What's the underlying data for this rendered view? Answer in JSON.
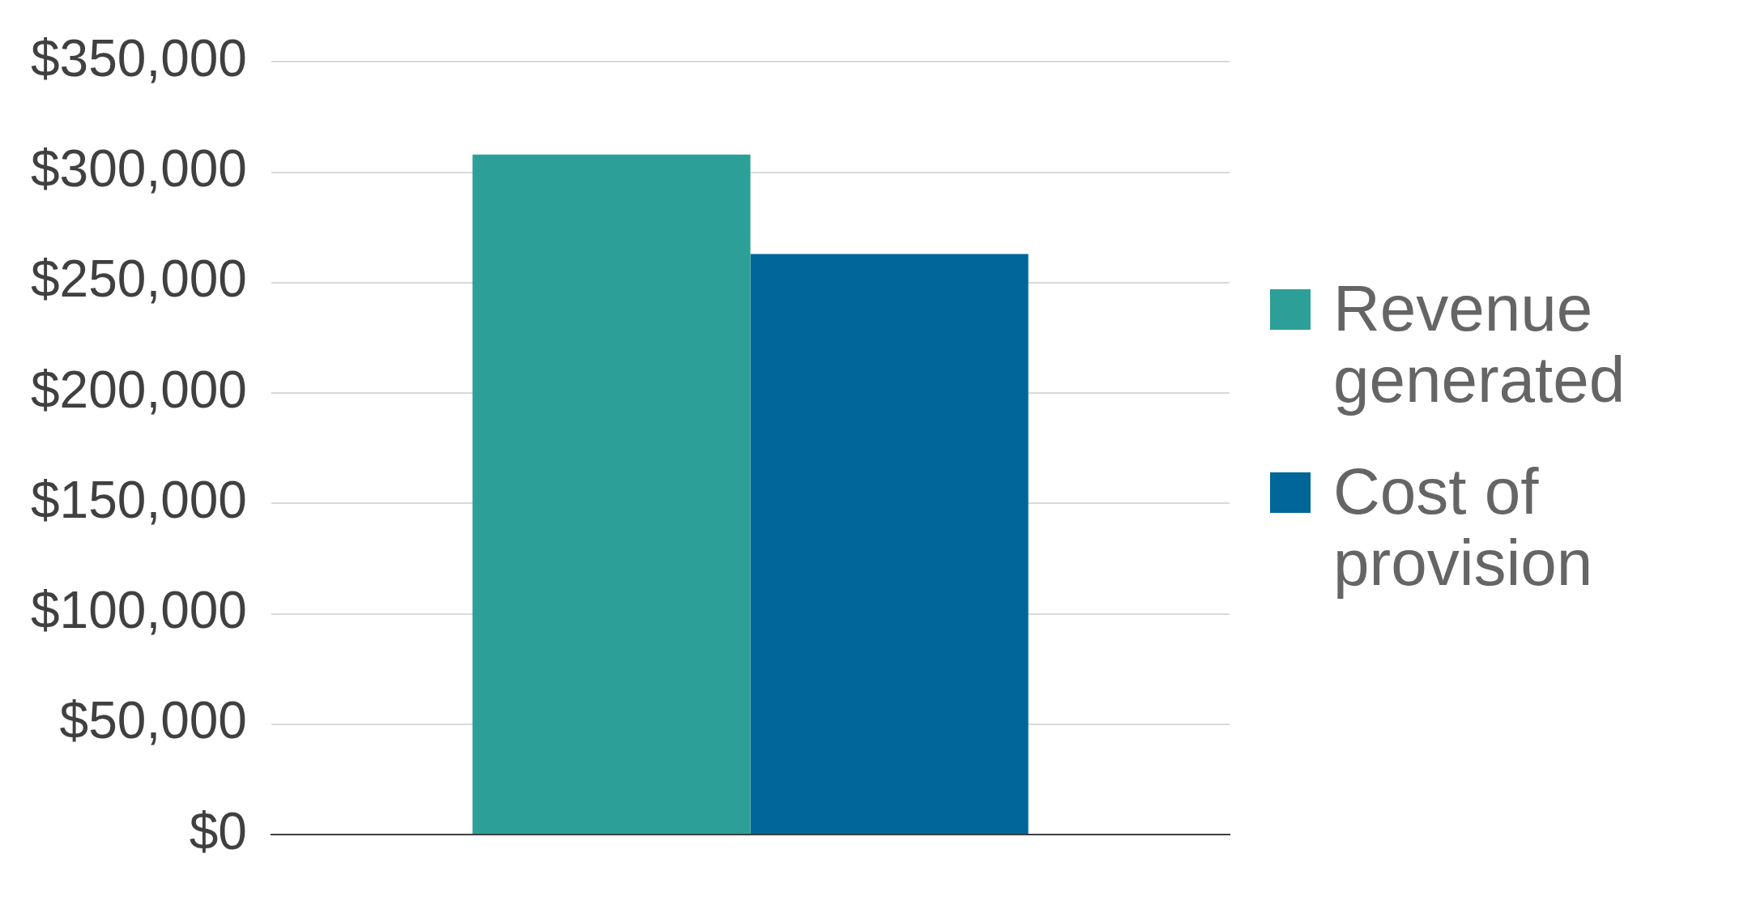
{
  "chart_data": {
    "type": "bar",
    "categories": [
      null
    ],
    "series": [
      {
        "name": "Revenue generated",
        "color": "#2c9f99",
        "values": [
          308000
        ]
      },
      {
        "name": "Cost of provision",
        "color": "#016699",
        "values": [
          263000
        ]
      }
    ],
    "ylim": [
      0,
      350000
    ],
    "yticks": [
      {
        "value": 0,
        "label": "$0"
      },
      {
        "value": 50000,
        "label": "$50,000"
      },
      {
        "value": 100000,
        "label": "$100,000"
      },
      {
        "value": 150000,
        "label": "$150,000"
      },
      {
        "value": 200000,
        "label": "$200,000"
      },
      {
        "value": 250000,
        "label": "$250,000"
      },
      {
        "value": 300000,
        "label": "$300,000"
      },
      {
        "value": 350000,
        "label": "$350,000"
      }
    ],
    "grid": "y",
    "legend": "right"
  }
}
